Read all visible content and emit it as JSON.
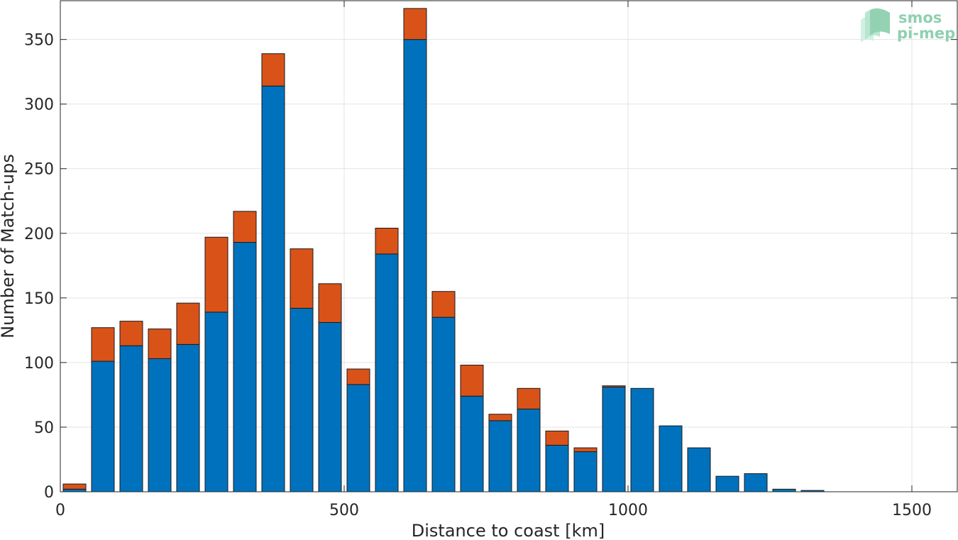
{
  "chart_data": {
    "type": "bar",
    "stacked": true,
    "title": "",
    "xlabel": "Distance to coast [km]",
    "ylabel": "Number of Match-ups",
    "xlim": [
      0,
      1580
    ],
    "ylim": [
      0,
      380
    ],
    "xticks": [
      0,
      500,
      1000,
      1500
    ],
    "yticks": [
      0,
      50,
      100,
      150,
      200,
      250,
      300,
      350
    ],
    "xtick_labels": [
      "0",
      "500",
      "1000",
      "1500"
    ],
    "ytick_labels": [
      "0",
      "50",
      "100",
      "150",
      "200",
      "250",
      "300",
      "350"
    ],
    "grid": true,
    "legend": "none",
    "bin_width": 50,
    "x": [
      25,
      75,
      125,
      175,
      225,
      275,
      325,
      375,
      425,
      475,
      525,
      575,
      625,
      675,
      725,
      775,
      825,
      875,
      925,
      975,
      1025,
      1075,
      1125,
      1175,
      1225,
      1275,
      1325,
      1375,
      1425,
      1475
    ],
    "series": [
      {
        "color": "#0072bd",
        "values": [
          2,
          101,
          113,
          103,
          114,
          139,
          193,
          314,
          142,
          131,
          83,
          184,
          350,
          135,
          74,
          55,
          64,
          36,
          31,
          81,
          80,
          51,
          34,
          12,
          14,
          2,
          1,
          0,
          0,
          0
        ]
      },
      {
        "color": "#d95319",
        "values": [
          4,
          26,
          19,
          23,
          32,
          58,
          24,
          25,
          46,
          30,
          12,
          20,
          24,
          20,
          24,
          5,
          16,
          11,
          3,
          1,
          0,
          0,
          0,
          0,
          0,
          0,
          0,
          0,
          0,
          0
        ]
      }
    ]
  },
  "logo": {
    "line1": "smos",
    "line2": "pi-mep",
    "color": "#8fd0b0"
  }
}
